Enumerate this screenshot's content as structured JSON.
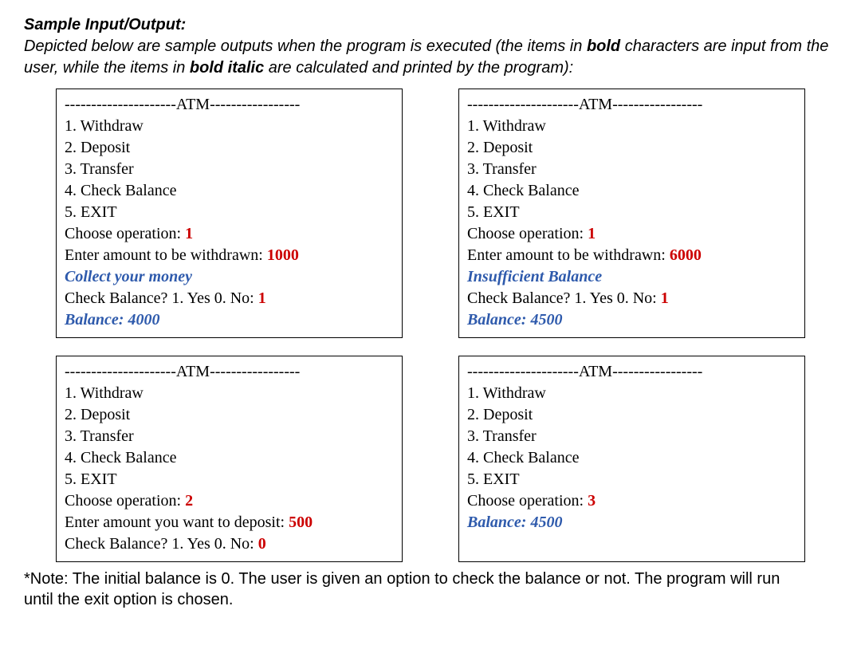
{
  "intro": {
    "title": "Sample Input/Output:",
    "body_pre": "Depicted below are sample outputs when the program is executed (the items in ",
    "body_bold1": "bold",
    "body_mid": " characters are input from the user, while the items in ",
    "body_bold2": "bold italic",
    "body_post": " are calculated and printed by the program):"
  },
  "atm_header": "---------------------ATM-----------------",
  "menu": {
    "1": "1. Withdraw",
    "2": "2. Deposit",
    "3": "3. Transfer",
    "4": "4. Check Balance",
    "5": "5. EXIT"
  },
  "prompts": {
    "choose": "Choose operation: ",
    "withdraw_amt": "Enter amount to be withdrawn: ",
    "deposit_amt": "Enter amount you want to deposit: ",
    "check_balance": "Check Balance? 1. Yes  0. No: "
  },
  "outputs": {
    "collect": "Collect your money",
    "insufficient": "Insufficient Balance",
    "balance_prefix": "Balance: "
  },
  "panels": {
    "p1": {
      "choose": "1",
      "amount": "1000",
      "msg_key": "collect",
      "check_ans": "1",
      "balance": "4000"
    },
    "p2": {
      "choose": "1",
      "amount": "6000",
      "msg_key": "insufficient",
      "check_ans": "1",
      "balance": "4500"
    },
    "p3": {
      "choose": "2",
      "amount": "500",
      "check_ans": "0"
    },
    "p4": {
      "choose": "3",
      "balance": "4500"
    }
  },
  "note": "*Note: The initial balance is 0. The user is given an option to check the balance or not. The program will run until the exit option is chosen.",
  "colors": {
    "user_input": "#cc0000",
    "prog_output": "#2e5aac",
    "border": "#000000",
    "bg": "#ffffff"
  },
  "fonts": {
    "intro_family": "Century Gothic",
    "panel_family": "Times New Roman",
    "intro_size_pt": 15,
    "panel_size_pt": 15
  }
}
